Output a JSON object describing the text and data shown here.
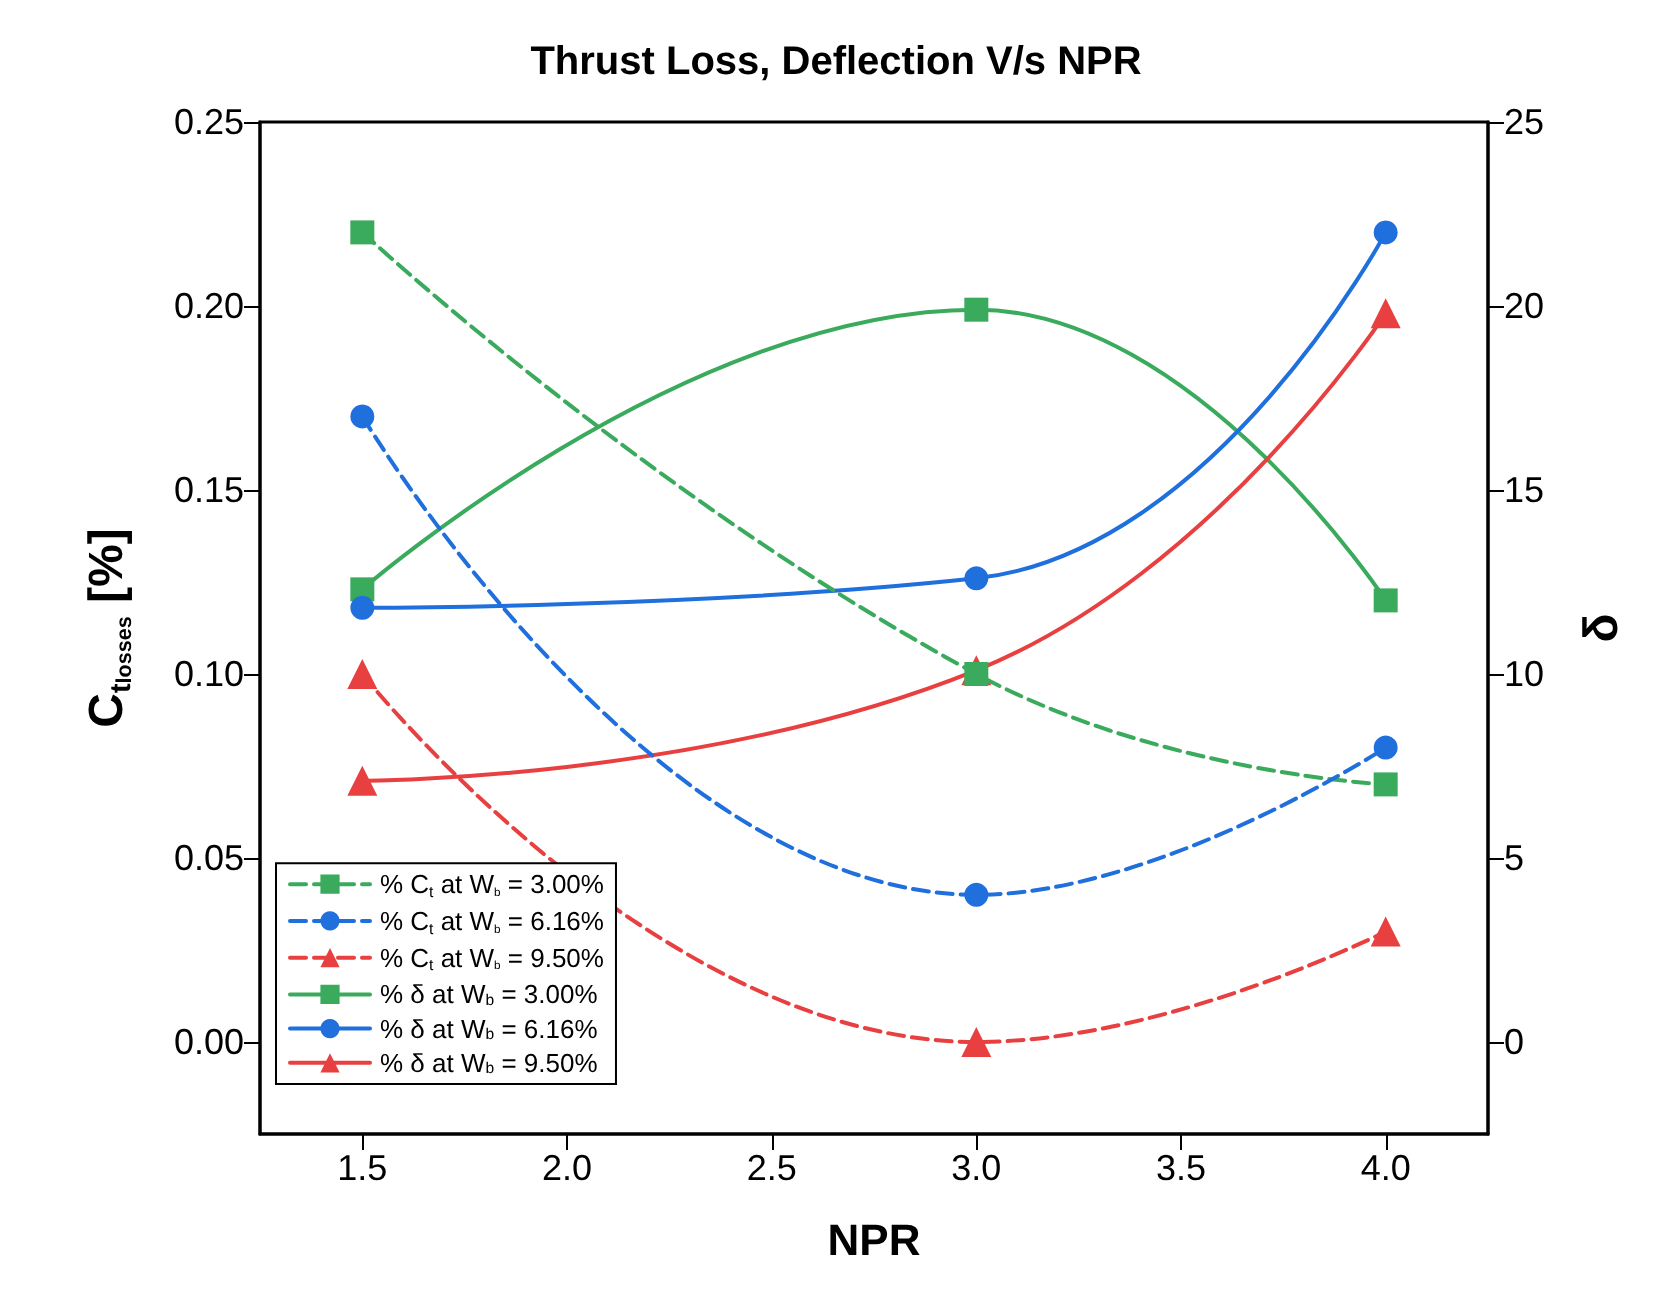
{
  "chart_data": {
    "type": "line",
    "title": "Thrust Loss, Deflection V/s NPR",
    "xlabel": "NPR",
    "ylabel": "C$_{t}$$_{losses}$ [%]",
    "y2label": "δ",
    "x": [
      1.5,
      3.0,
      4.0
    ],
    "series": [
      {
        "name": "% C$_{t}$ at W$_{b}$ = 3.00%",
        "color": "#3aaa5c",
        "marker": "square",
        "line_style": "dashed",
        "values": [
          0.22,
          0.1,
          0.07
        ]
      },
      {
        "name": "% C$_{t}$ at W$_{b}$ = 6.16%",
        "color": "#1f6fdc",
        "marker": "circle",
        "line_style": "dashed",
        "values": [
          0.17,
          0.04,
          0.08
        ]
      },
      {
        "name": "% C$_{t}$ at W$_{b}$ = 9.50%",
        "color": "#e84040",
        "marker": "triangle",
        "line_style": "dashed",
        "values": [
          0.1,
          0.0,
          0.03
        ]
      },
      {
        "name": "% δ at W$_{b}$ = 3.00%",
        "color": "#3aaa5c",
        "marker": "square",
        "line_style": "solid",
        "axis": "y2",
        "values": [
          12.3,
          19.9,
          12.0
        ]
      },
      {
        "name": "% δ at W$_{b}$ = 6.16%",
        "color": "#1f6fdc",
        "marker": "circle",
        "line_style": "solid",
        "axis": "y2",
        "values": [
          11.8,
          12.6,
          22.0
        ]
      },
      {
        "name": "% δ at W$_{b}$ = 9.50%",
        "color": "#e84040",
        "marker": "triangle",
        "line_style": "solid",
        "axis": "y2",
        "values": [
          7.1,
          10.1,
          19.8
        ]
      }
    ],
    "xlim": [
      1.25,
      4.25
    ],
    "xticks": [
      1.5,
      {
        "value": 2,
        "label": "2.0"
      },
      2.5,
      {
        "value": 3,
        "label": "3.0"
      },
      3.5,
      {
        "value": 4,
        "label": "4.0"
      }
    ],
    "ylim": [
      -0.025,
      0.25
    ],
    "yticks": [
      {
        "value": 0,
        "label": "0.00"
      },
      0.05,
      {
        "value": 0.1,
        "label": "0.10"
      },
      0.15,
      {
        "value": 0.2,
        "label": "0.20"
      },
      0.25
    ],
    "y2lim": [
      -2.5,
      25
    ],
    "y2ticks": [
      0,
      5,
      10,
      15,
      20,
      25
    ],
    "grid": false,
    "legend": "bottom left"
  }
}
